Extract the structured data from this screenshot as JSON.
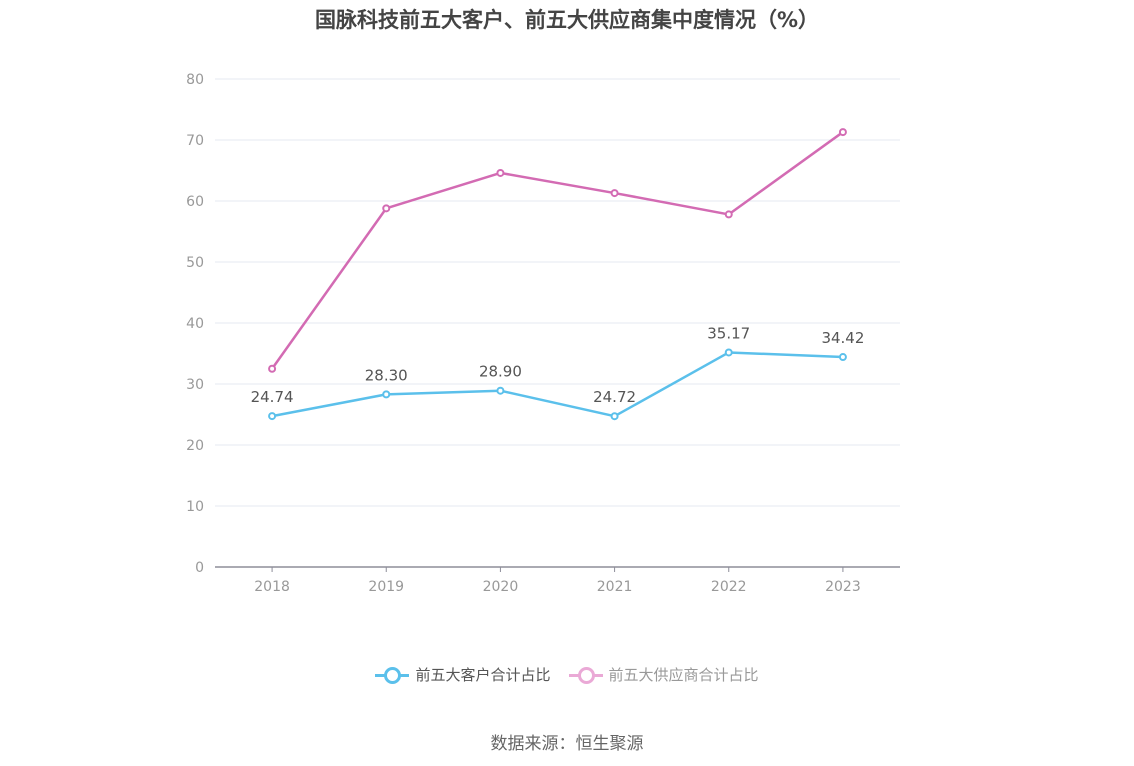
{
  "chart_data": {
    "type": "line",
    "title": "国脉科技前五大客户、前五大供应商集中度情况（%）",
    "categories": [
      "2018",
      "2019",
      "2020",
      "2021",
      "2022",
      "2023"
    ],
    "ylim": [
      0,
      80
    ],
    "yticks": [
      0,
      10,
      20,
      30,
      40,
      50,
      60,
      70,
      80
    ],
    "grid": true,
    "legend_position": "bottom",
    "series": [
      {
        "name": "前五大客户合计占比",
        "color": "#5bc0eb",
        "values": [
          24.74,
          28.3,
          28.9,
          24.72,
          35.17,
          34.42
        ],
        "labels": [
          "24.74",
          "28.30",
          "28.90",
          "24.72",
          "35.17",
          "34.42"
        ]
      },
      {
        "name": "前五大供应商合计占比",
        "color": "#d36bb3",
        "legend_color": "#eaa9d6",
        "values": [
          32.5,
          58.8,
          64.6,
          61.3,
          57.8,
          71.3
        ]
      }
    ]
  },
  "source": "数据来源：恒生聚源"
}
